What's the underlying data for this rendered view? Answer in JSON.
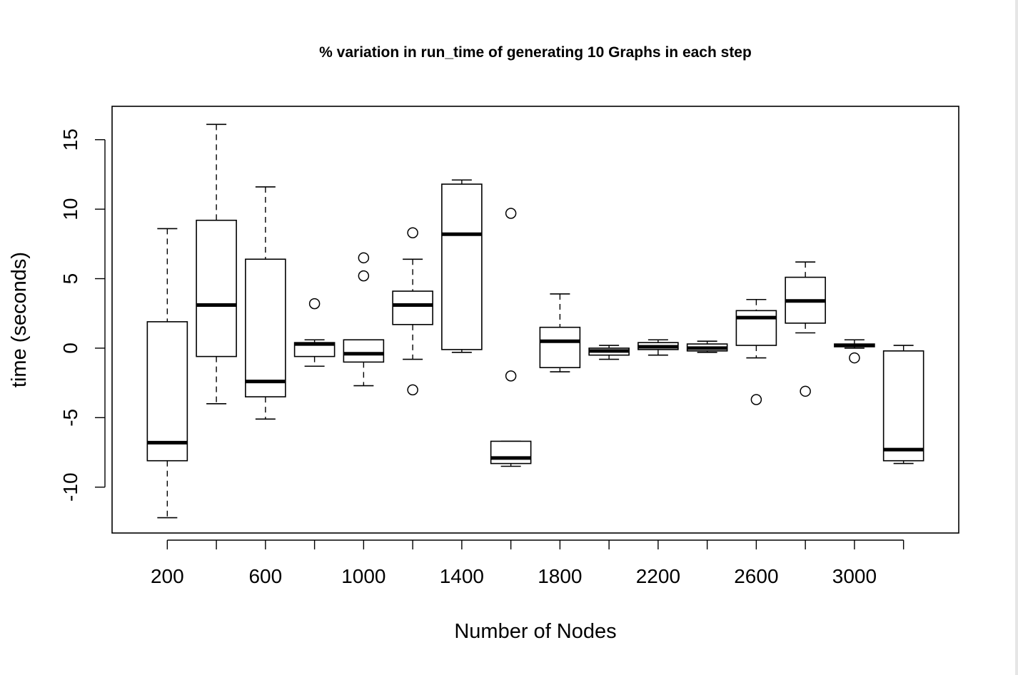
{
  "chart_data": {
    "type": "boxplot",
    "title": "% variation in run_time of generating 10 Graphs in each step",
    "xlabel": "Number of Nodes",
    "ylabel": "time (seconds)",
    "x_tick_labels": [
      "200",
      "600",
      "1000",
      "1400",
      "1800",
      "2200",
      "2600",
      "3000"
    ],
    "x_tick_values": [
      200,
      600,
      1000,
      1400,
      1800,
      2200,
      2600,
      3000
    ],
    "y_tick_labels": [
      "-10",
      "-5",
      "0",
      "5",
      "10",
      "15"
    ],
    "y_tick_values": [
      -10,
      -5,
      0,
      5,
      10,
      15
    ],
    "xlim": [
      -25,
      3425
    ],
    "ylim": [
      -13.3,
      17.4
    ],
    "grid": false,
    "legend": "none",
    "boxes": [
      {
        "x": 200,
        "whisker_low": -12.2,
        "q1": -8.1,
        "median": -6.8,
        "q3": 1.9,
        "whisker_high": 8.6,
        "outliers": []
      },
      {
        "x": 400,
        "whisker_low": -4.0,
        "q1": -0.6,
        "median": 3.1,
        "q3": 9.2,
        "whisker_high": 16.1,
        "outliers": []
      },
      {
        "x": 600,
        "whisker_low": -5.1,
        "q1": -3.5,
        "median": -2.4,
        "q3": 6.4,
        "whisker_high": 11.6,
        "outliers": []
      },
      {
        "x": 800,
        "whisker_low": -1.3,
        "q1": -0.6,
        "median": 0.3,
        "q3": 0.4,
        "whisker_high": 0.6,
        "outliers": [
          3.2
        ]
      },
      {
        "x": 1000,
        "whisker_low": -2.7,
        "q1": -1.0,
        "median": -0.4,
        "q3": 0.6,
        "whisker_high": 0.6,
        "outliers": [
          6.5,
          5.2
        ]
      },
      {
        "x": 1200,
        "whisker_low": -0.8,
        "q1": 1.7,
        "median": 3.1,
        "q3": 4.1,
        "whisker_high": 6.4,
        "outliers": [
          8.3,
          -3.0
        ]
      },
      {
        "x": 1400,
        "whisker_low": -0.3,
        "q1": -0.1,
        "median": 8.2,
        "q3": 11.8,
        "whisker_high": 12.1,
        "outliers": []
      },
      {
        "x": 1600,
        "whisker_low": -8.5,
        "q1": -8.3,
        "median": -7.9,
        "q3": -6.7,
        "whisker_high": -6.7,
        "outliers": [
          9.7,
          -2.0
        ]
      },
      {
        "x": 1800,
        "whisker_low": -1.7,
        "q1": -1.4,
        "median": 0.5,
        "q3": 1.5,
        "whisker_high": 3.9,
        "outliers": []
      },
      {
        "x": 2000,
        "whisker_low": -0.8,
        "q1": -0.5,
        "median": -0.2,
        "q3": 0.0,
        "whisker_high": 0.2,
        "outliers": []
      },
      {
        "x": 2200,
        "whisker_low": -0.5,
        "q1": -0.1,
        "median": 0.1,
        "q3": 0.4,
        "whisker_high": 0.6,
        "outliers": []
      },
      {
        "x": 2400,
        "whisker_low": -0.3,
        "q1": -0.2,
        "median": 0.0,
        "q3": 0.3,
        "whisker_high": 0.5,
        "outliers": []
      },
      {
        "x": 2600,
        "whisker_low": -0.7,
        "q1": 0.2,
        "median": 2.2,
        "q3": 2.7,
        "whisker_high": 3.5,
        "outliers": [
          -3.7
        ]
      },
      {
        "x": 2800,
        "whisker_low": 1.1,
        "q1": 1.8,
        "median": 3.4,
        "q3": 5.1,
        "whisker_high": 6.2,
        "outliers": [
          -3.1
        ]
      },
      {
        "x": 3000,
        "whisker_low": 0.0,
        "q1": 0.1,
        "median": 0.2,
        "q3": 0.3,
        "whisker_high": 0.6,
        "outliers": [
          -0.7
        ]
      },
      {
        "x": 3200,
        "whisker_low": -8.3,
        "q1": -8.1,
        "median": -7.3,
        "q3": -0.2,
        "whisker_high": 0.2,
        "outliers": []
      }
    ]
  }
}
